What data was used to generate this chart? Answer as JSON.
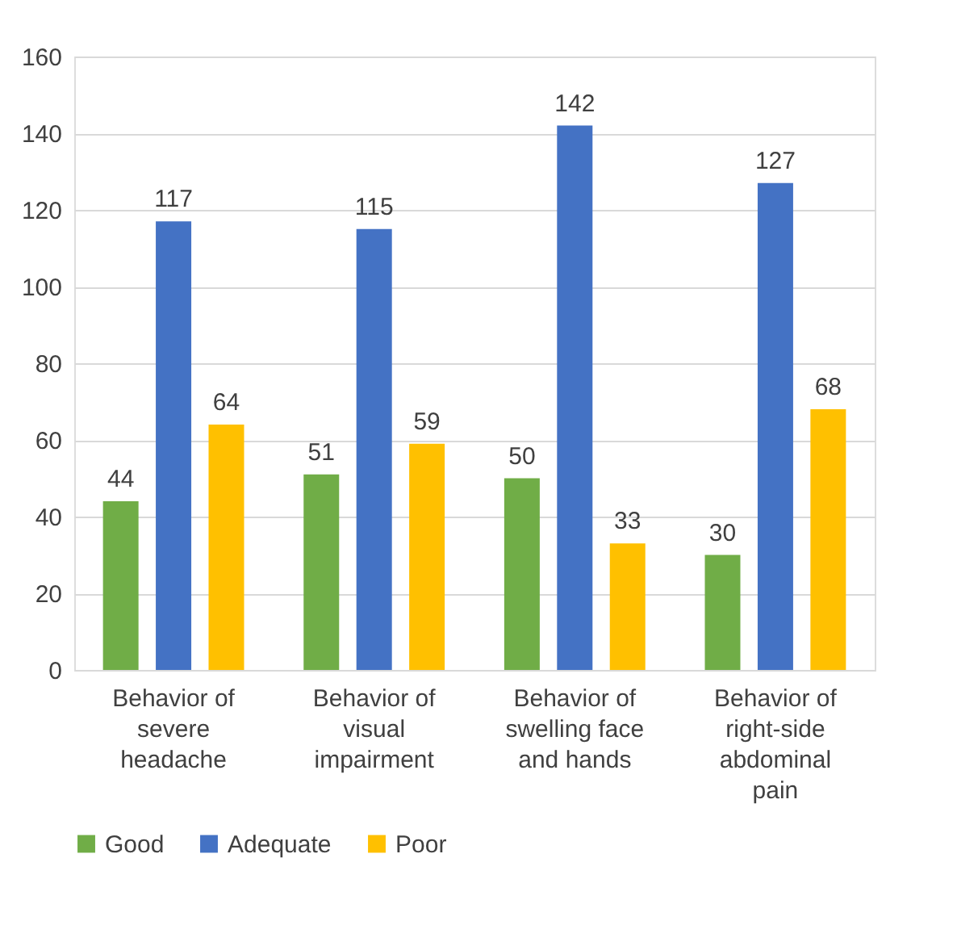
{
  "chart_data": {
    "type": "bar",
    "categories": [
      "Behavior of severe headache",
      "Behavior of visual impairment",
      "Behavior of swelling face and hands",
      "Behavior of right-side abdominal pain"
    ],
    "series": [
      {
        "name": "Good",
        "color": "#70ad47",
        "values": [
          44,
          51,
          50,
          30
        ]
      },
      {
        "name": "Adequate",
        "color": "#4472c4",
        "values": [
          117,
          115,
          142,
          127
        ]
      },
      {
        "name": "Poor",
        "color": "#ffc000",
        "values": [
          64,
          59,
          33,
          68
        ]
      }
    ],
    "ylim": [
      0,
      160
    ],
    "yticks": [
      0,
      20,
      40,
      60,
      80,
      100,
      120,
      140,
      160
    ],
    "grid": "y",
    "legend": "bottom",
    "data_labels": true
  }
}
